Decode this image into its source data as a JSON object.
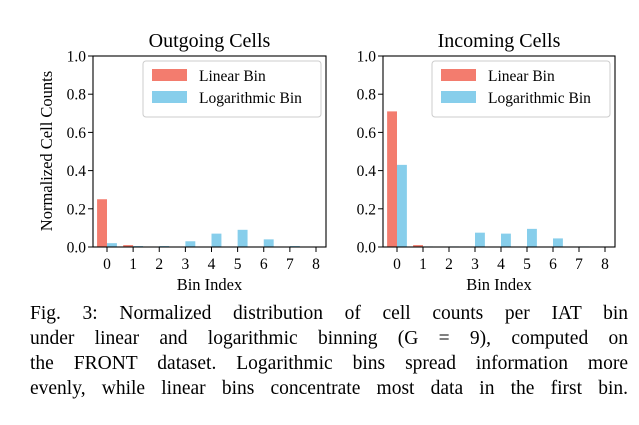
{
  "figure": {
    "ylabel": "Normalized Cell Counts",
    "xlabel": "Bin Index"
  },
  "chart_data": [
    {
      "type": "bar",
      "title": "Outgoing Cells",
      "xlabel": "Bin Index",
      "ylabel": "Normalized Cell Counts",
      "categories": [
        "0",
        "1",
        "2",
        "3",
        "4",
        "5",
        "6",
        "7",
        "8"
      ],
      "ylim": [
        0,
        1.0
      ],
      "yticks": [
        "0.0",
        "0.2",
        "0.4",
        "0.6",
        "0.8",
        "1.0"
      ],
      "legend": "top-right",
      "grid": false,
      "series": [
        {
          "name": "Linear Bin",
          "color": "#f37c6e",
          "values": [
            0.25,
            0.01,
            0.0,
            0.0,
            0.0,
            0.0,
            0.0,
            0.0,
            0.0
          ]
        },
        {
          "name": "Logarithmic Bin",
          "color": "#87ceeb",
          "values": [
            0.02,
            0.005,
            0.005,
            0.03,
            0.07,
            0.09,
            0.04,
            0.005,
            0.0
          ]
        }
      ]
    },
    {
      "type": "bar",
      "title": "Incoming Cells",
      "xlabel": "Bin Index",
      "categories": [
        "0",
        "1",
        "2",
        "3",
        "4",
        "5",
        "6",
        "7",
        "8"
      ],
      "ylim": [
        0,
        1.0
      ],
      "yticks": [
        "0.0",
        "0.2",
        "0.4",
        "0.6",
        "0.8",
        "1.0"
      ],
      "legend": "top-right",
      "grid": false,
      "series": [
        {
          "name": "Linear Bin",
          "color": "#f37c6e",
          "values": [
            0.71,
            0.01,
            0.0,
            0.0,
            0.0,
            0.0,
            0.0,
            0.0,
            0.0
          ]
        },
        {
          "name": "Logarithmic Bin",
          "color": "#87ceeb",
          "values": [
            0.43,
            0.003,
            0.003,
            0.075,
            0.07,
            0.095,
            0.045,
            0.003,
            0.0
          ]
        }
      ]
    }
  ],
  "caption": {
    "lines": [
      "Fig. 3: Normalized distribution of cell counts per IAT bin",
      "under linear and logarithmic binning (G = 9), computed on",
      "the FRONT dataset. Logarithmic bins spread information more",
      "evenly, while linear bins concentrate most data in the first bin."
    ]
  }
}
